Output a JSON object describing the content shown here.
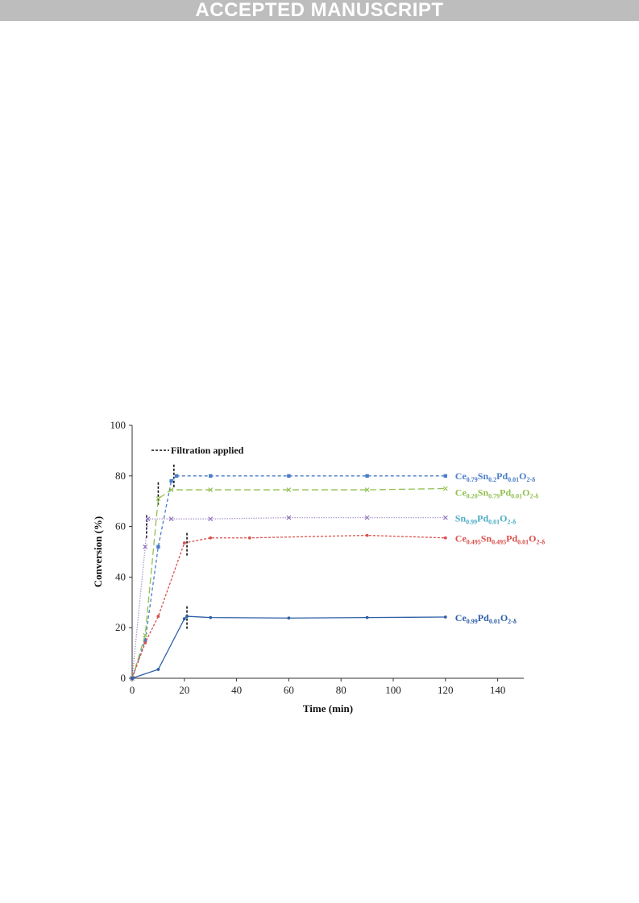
{
  "banner": "ACCEPTED MANUSCRIPT",
  "chart_data": {
    "type": "line",
    "xlabel": "Time (min)",
    "ylabel": "Conversion (%)",
    "xlim": [
      0,
      150
    ],
    "ylim": [
      0,
      100
    ],
    "xticks": [
      0,
      20,
      40,
      60,
      80,
      100,
      120,
      140
    ],
    "yticks": [
      0,
      20,
      40,
      60,
      80,
      100
    ],
    "grid": false,
    "legend": {
      "label": "Filtration applied",
      "placement": "top-left"
    },
    "series": [
      {
        "key": "cesnpd_079",
        "label_parts": [
          [
            "Ce",
            ""
          ],
          [
            "0.79",
            "sub"
          ],
          [
            "Sn",
            ""
          ],
          [
            "0.2",
            "sub"
          ],
          [
            "Pd",
            ""
          ],
          [
            "0.01",
            "sub"
          ],
          [
            "O",
            ""
          ],
          [
            "2-δ",
            "sub"
          ]
        ],
        "color": "#4a7cc8",
        "dash": "4,3",
        "marker": "square",
        "x": [
          0,
          5,
          10,
          15,
          17,
          30,
          60,
          90,
          120
        ],
        "y": [
          0,
          15,
          52,
          78,
          80,
          80,
          80,
          80,
          80
        ],
        "filtration_at": [
          16,
          80
        ]
      },
      {
        "key": "cesnpd_020",
        "label_parts": [
          [
            "Ce",
            ""
          ],
          [
            "0.20",
            "sub"
          ],
          [
            "Sn",
            ""
          ],
          [
            "0.79",
            "sub"
          ],
          [
            "Pd",
            ""
          ],
          [
            "0.01",
            "sub"
          ],
          [
            "O",
            ""
          ],
          [
            "2-δ",
            "sub"
          ]
        ],
        "color": "#92c050",
        "dash": "8,4",
        "marker": "x",
        "x": [
          0,
          5,
          10,
          15,
          30,
          60,
          90,
          120
        ],
        "y": [
          0,
          17,
          71,
          74.5,
          74.5,
          74.5,
          74.5,
          75
        ],
        "filtration_at": [
          10,
          73
        ]
      },
      {
        "key": "snpd",
        "label_parts": [
          [
            "Sn",
            ""
          ],
          [
            "0.99",
            "sub"
          ],
          [
            "Pd",
            ""
          ],
          [
            "0.01",
            "sub"
          ],
          [
            "O",
            ""
          ],
          [
            "2-δ",
            "sub"
          ]
        ],
        "color": "#8a6cb8",
        "label_color": "#4bacc6",
        "dash": "1,2",
        "marker": "x",
        "x": [
          0,
          5,
          6,
          15,
          30,
          60,
          90,
          120
        ],
        "y": [
          0,
          52,
          63,
          63,
          63,
          63.5,
          63.5,
          63.5
        ],
        "filtration_at": [
          5.5,
          60
        ]
      },
      {
        "key": "cesnpd_0495",
        "label_parts": [
          [
            "Ce",
            ""
          ],
          [
            "0.495",
            "sub"
          ],
          [
            "Sn",
            ""
          ],
          [
            "0.495",
            "sub"
          ],
          [
            "Pd",
            ""
          ],
          [
            "0.01",
            "sub"
          ],
          [
            "O",
            ""
          ],
          [
            "2-δ",
            "sub"
          ]
        ],
        "color": "#d9504c",
        "dash": "3,2",
        "marker": "dot",
        "x": [
          0,
          5,
          10,
          20,
          30,
          45,
          90,
          120
        ],
        "y": [
          0,
          14,
          24.5,
          53.5,
          55.5,
          55.5,
          56.5,
          55.5
        ],
        "filtration_at": [
          21,
          53
        ]
      },
      {
        "key": "cepd",
        "label_parts": [
          [
            "Ce",
            ""
          ],
          [
            "0.99",
            "sub"
          ],
          [
            "Pd",
            ""
          ],
          [
            "0.01",
            "sub"
          ],
          [
            "O",
            ""
          ],
          [
            "2-δ",
            "sub"
          ]
        ],
        "color": "#2e5ea6",
        "dash": "",
        "marker": "dot",
        "x": [
          0,
          10,
          20,
          21,
          30,
          60,
          90,
          120
        ],
        "y": [
          0,
          3.5,
          23.5,
          24.5,
          24,
          23.8,
          24,
          24.2
        ],
        "filtration_at": [
          21,
          24
        ]
      }
    ]
  }
}
